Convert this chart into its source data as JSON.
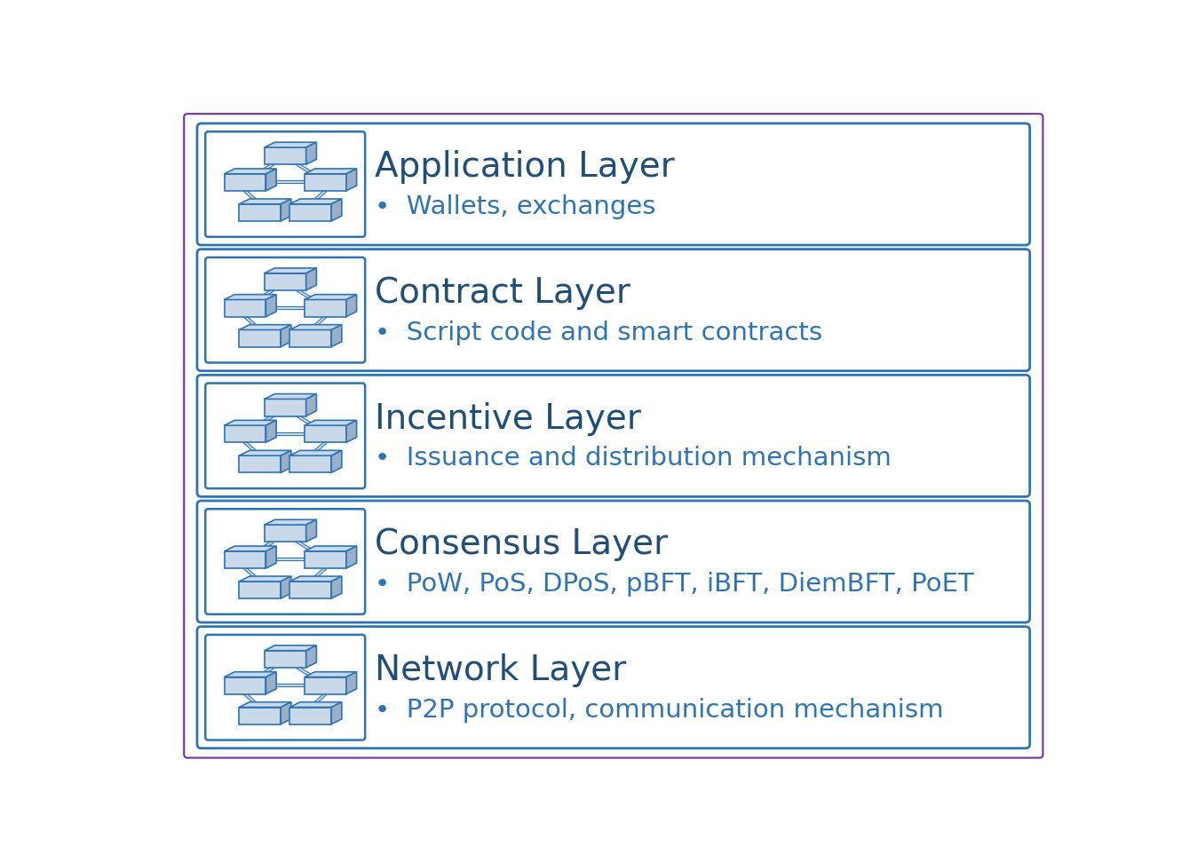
{
  "background_color": "#ffffff",
  "outer_border_color": "#7030a0",
  "box_border_color": "#2e74b5",
  "box_fill_color": "#ffffff",
  "title_color": "#1f4e79",
  "bullet_color": "#2e74b5",
  "icon_fill_light": "#c9d9ea",
  "icon_fill_mid": "#adc4d9",
  "icon_stroke": "#2e74b5",
  "layers": [
    {
      "title": "Application Layer",
      "bullet": "Wallets, exchanges"
    },
    {
      "title": "Contract Layer",
      "bullet": "Script code and smart contracts"
    },
    {
      "title": "Incentive Layer",
      "bullet": "Issuance and distribution mechanism"
    },
    {
      "title": "Consensus Layer",
      "bullet": "PoW, PoS, DPoS, pBFT, iBFT, DiemBFT, PoET"
    },
    {
      "title": "Network Layer",
      "bullet": "P2P protocol, communication mechanism"
    }
  ],
  "title_fontsize": 28,
  "bullet_fontsize": 21,
  "figsize": [
    13.48,
    9.72
  ],
  "dpi": 100
}
